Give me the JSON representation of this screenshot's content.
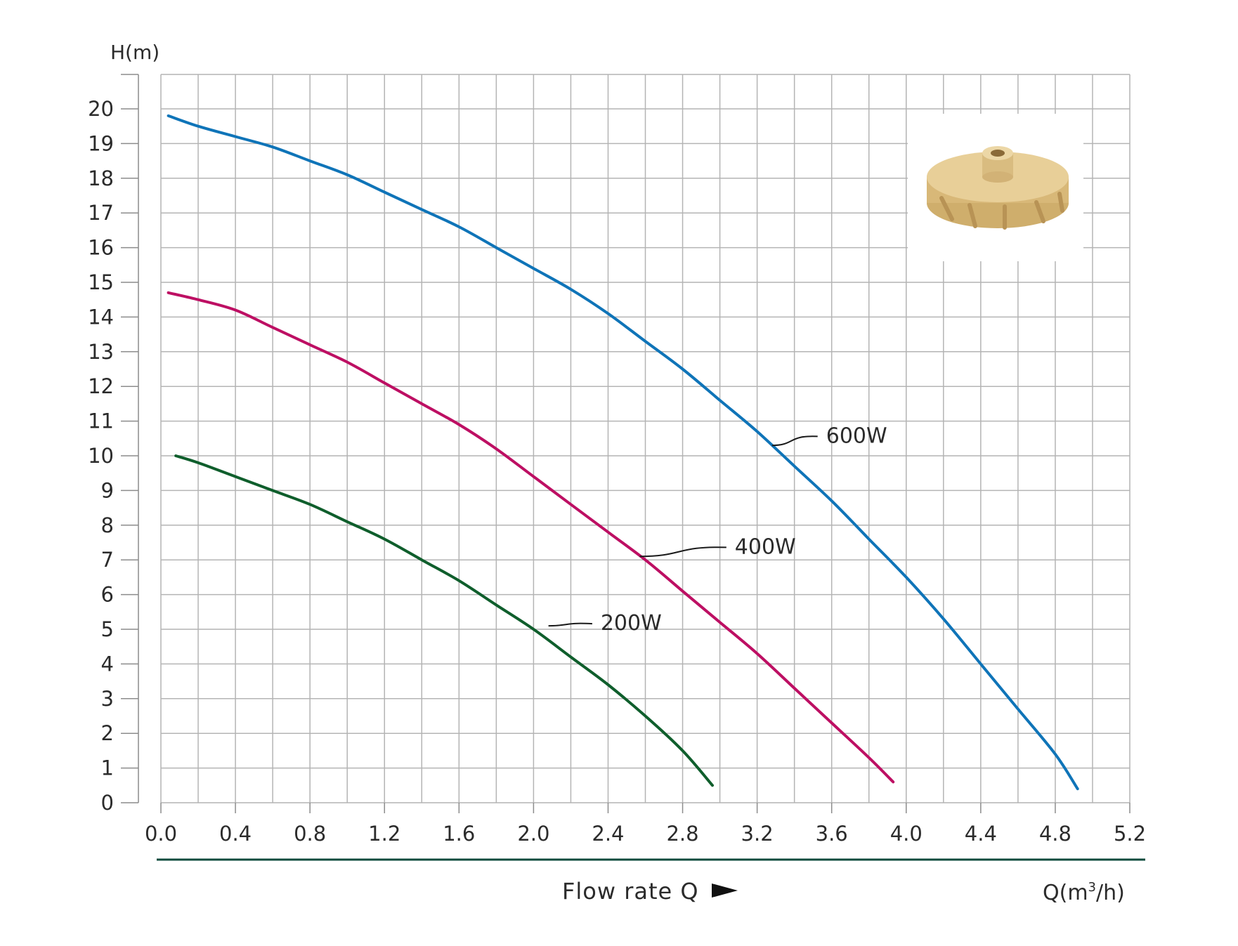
{
  "chart_data": {
    "type": "line",
    "ylabel": "H(m)",
    "xlabel": "Flow rate Q",
    "x_unit_label": "Q(m³/h)",
    "x_unit_base": "Q(m",
    "x_unit_sup": "3",
    "x_unit_end": "/h)",
    "xlim": [
      0,
      5.2
    ],
    "ylim": [
      0,
      20
    ],
    "x_ticks": [
      "0.0",
      "0.4",
      "0.8",
      "1.2",
      "1.6",
      "2.0",
      "2.4",
      "2.8",
      "3.2",
      "3.6",
      "4.0",
      "4.4",
      "4.8",
      "5.2"
    ],
    "y_ticks": [
      "0",
      "1",
      "2",
      "3",
      "4",
      "5",
      "6",
      "7",
      "8",
      "9",
      "10",
      "11",
      "12",
      "13",
      "14",
      "15",
      "16",
      "17",
      "18",
      "19",
      "20"
    ],
    "grid": true,
    "inset_image": "impeller-photo",
    "series": [
      {
        "name": "600W",
        "color": "#0f74b8",
        "points": [
          [
            0.04,
            19.8
          ],
          [
            0.2,
            19.5
          ],
          [
            0.4,
            19.2
          ],
          [
            0.6,
            18.9
          ],
          [
            0.8,
            18.5
          ],
          [
            1.0,
            18.1
          ],
          [
            1.2,
            17.6
          ],
          [
            1.4,
            17.1
          ],
          [
            1.6,
            16.6
          ],
          [
            1.8,
            16.0
          ],
          [
            2.0,
            15.4
          ],
          [
            2.2,
            14.8
          ],
          [
            2.4,
            14.1
          ],
          [
            2.6,
            13.3
          ],
          [
            2.8,
            12.5
          ],
          [
            3.0,
            11.6
          ],
          [
            3.2,
            10.7
          ],
          [
            3.4,
            9.7
          ],
          [
            3.6,
            8.7
          ],
          [
            3.8,
            7.6
          ],
          [
            4.0,
            6.5
          ],
          [
            4.2,
            5.3
          ],
          [
            4.4,
            4.0
          ],
          [
            4.6,
            2.7
          ],
          [
            4.8,
            1.4
          ],
          [
            4.92,
            0.4
          ]
        ],
        "label_anchor": [
          3.28,
          10.3
        ],
        "label_pos": [
          3.57,
          10.6
        ]
      },
      {
        "name": "400W",
        "color": "#bd0f63",
        "points": [
          [
            0.04,
            14.7
          ],
          [
            0.2,
            14.5
          ],
          [
            0.4,
            14.2
          ],
          [
            0.6,
            13.7
          ],
          [
            0.8,
            13.2
          ],
          [
            1.0,
            12.7
          ],
          [
            1.2,
            12.1
          ],
          [
            1.4,
            11.5
          ],
          [
            1.6,
            10.9
          ],
          [
            1.8,
            10.2
          ],
          [
            2.0,
            9.4
          ],
          [
            2.2,
            8.6
          ],
          [
            2.4,
            7.8
          ],
          [
            2.6,
            7.0
          ],
          [
            2.8,
            6.1
          ],
          [
            3.0,
            5.2
          ],
          [
            3.2,
            4.3
          ],
          [
            3.4,
            3.3
          ],
          [
            3.6,
            2.3
          ],
          [
            3.8,
            1.3
          ],
          [
            3.93,
            0.6
          ]
        ],
        "label_anchor": [
          2.57,
          7.1
        ],
        "label_pos": [
          3.08,
          7.4
        ]
      },
      {
        "name": "200W",
        "color": "#0f5e2c",
        "points": [
          [
            0.08,
            10.0
          ],
          [
            0.2,
            9.8
          ],
          [
            0.4,
            9.4
          ],
          [
            0.6,
            9.0
          ],
          [
            0.8,
            8.6
          ],
          [
            1.0,
            8.1
          ],
          [
            1.2,
            7.6
          ],
          [
            1.4,
            7.0
          ],
          [
            1.6,
            6.4
          ],
          [
            1.8,
            5.7
          ],
          [
            2.0,
            5.0
          ],
          [
            2.2,
            4.2
          ],
          [
            2.4,
            3.4
          ],
          [
            2.6,
            2.5
          ],
          [
            2.8,
            1.5
          ],
          [
            2.96,
            0.5
          ]
        ],
        "label_anchor": [
          2.08,
          5.1
        ],
        "label_pos": [
          2.36,
          5.2
        ]
      }
    ]
  }
}
